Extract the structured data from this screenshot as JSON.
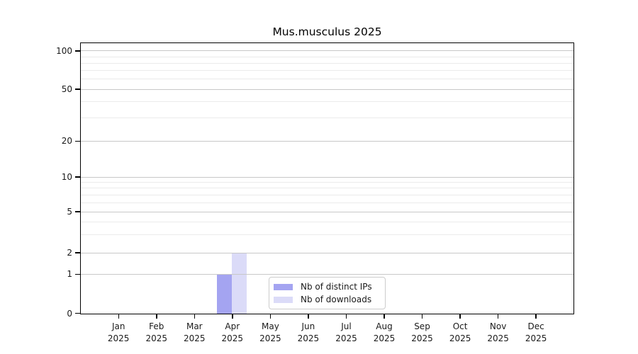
{
  "chart_data": {
    "type": "bar",
    "title": "Mus.musculus 2025",
    "categories": [
      {
        "month": "Jan",
        "year": "2025"
      },
      {
        "month": "Feb",
        "year": "2025"
      },
      {
        "month": "Mar",
        "year": "2025"
      },
      {
        "month": "Apr",
        "year": "2025"
      },
      {
        "month": "May",
        "year": "2025"
      },
      {
        "month": "Jun",
        "year": "2025"
      },
      {
        "month": "Jul",
        "year": "2025"
      },
      {
        "month": "Aug",
        "year": "2025"
      },
      {
        "month": "Sep",
        "year": "2025"
      },
      {
        "month": "Oct",
        "year": "2025"
      },
      {
        "month": "Nov",
        "year": "2025"
      },
      {
        "month": "Dec",
        "year": "2025"
      }
    ],
    "series": [
      {
        "name": "Nb of distinct IPs",
        "color": "#a4a4f1",
        "values": [
          0,
          0,
          0,
          1,
          0,
          0,
          0,
          0,
          0,
          0,
          0,
          0
        ]
      },
      {
        "name": "Nb of downloads",
        "color": "#dbdbf8",
        "values": [
          0,
          0,
          0,
          2,
          0,
          0,
          0,
          0,
          0,
          0,
          0,
          0
        ]
      }
    ],
    "xlabel": "",
    "ylabel": "",
    "y_axis": {
      "scale": "log-like",
      "major_ticks": [
        {
          "label": "0",
          "value": 0,
          "f": 0.0
        },
        {
          "label": "1",
          "value": 1,
          "f": 0.145
        },
        {
          "label": "2",
          "value": 2,
          "f": 0.224
        },
        {
          "label": "5",
          "value": 5,
          "f": 0.3763
        },
        {
          "label": "10",
          "value": 10,
          "f": 0.5052
        },
        {
          "label": "20",
          "value": 20,
          "f": 0.638
        },
        {
          "label": "50",
          "value": 50,
          "f": 0.8307
        },
        {
          "label": "100",
          "value": 100,
          "f": 0.9727
        }
      ],
      "minor_ticks": [
        {
          "value": 3,
          "f": 0.2914
        },
        {
          "value": 4,
          "f": 0.3392
        },
        {
          "value": 6,
          "f": 0.4102
        },
        {
          "value": 7,
          "f": 0.4389
        },
        {
          "value": 8,
          "f": 0.4637
        },
        {
          "value": 9,
          "f": 0.4856
        },
        {
          "value": 30,
          "f": 0.7233
        },
        {
          "value": 40,
          "f": 0.7838
        },
        {
          "value": 60,
          "f": 0.8681
        },
        {
          "value": 70,
          "f": 0.8996
        },
        {
          "value": 80,
          "f": 0.927
        },
        {
          "value": 90,
          "f": 0.9511
        }
      ]
    },
    "x_axis": {
      "first_center_f": 0.076,
      "step_f": 0.07714
    },
    "bar_width_f": 0.0305,
    "grid": {
      "major_color": "#c8c8c8",
      "minor_color": "#ebebeb",
      "horizontal_only": true
    },
    "legend": {
      "position": "inside-bottom-center"
    }
  },
  "colors": {
    "background": "#ffffff",
    "spine": "#000000",
    "text": "#1a1a1a",
    "legend_border": "#cccccc"
  }
}
